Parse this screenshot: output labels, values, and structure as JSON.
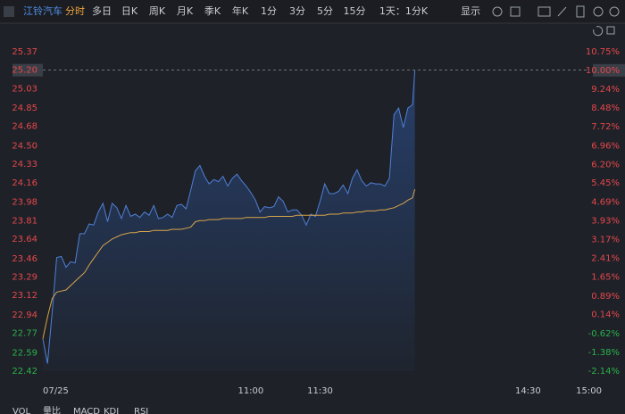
{
  "toolbar": {
    "stock": "江铃汽车",
    "tabs": [
      "分时",
      "多日",
      "日K",
      "周K",
      "月K",
      "季K",
      "年K",
      "1分",
      "3分",
      "5分",
      "15分",
      "1天：1分K"
    ],
    "display": "显示"
  },
  "indicators": [
    "VOL",
    "量比",
    "MACD",
    "KDJ",
    "RSI"
  ],
  "chart_data": {
    "type": "line",
    "x": [
      0,
      2,
      4,
      6,
      8,
      10,
      12,
      14,
      16,
      18,
      20,
      22,
      24,
      26,
      28,
      30,
      32,
      34,
      36,
      38,
      40,
      42,
      44,
      46,
      48,
      50,
      52,
      54,
      56,
      58,
      60,
      62,
      64,
      66,
      68,
      70,
      72,
      74,
      76,
      78,
      80,
      82,
      84,
      86,
      88,
      90,
      92,
      94,
      96,
      98,
      100,
      102,
      104,
      106,
      108,
      110,
      112,
      114,
      116,
      118,
      120,
      122,
      124,
      126,
      128,
      130,
      132,
      134,
      136,
      138,
      140,
      142,
      144,
      146,
      148,
      150,
      152,
      154,
      156,
      158,
      160,
      161
    ],
    "series": [
      {
        "name": "price",
        "color": "#4f80d8",
        "values": [
          22.72,
          22.49,
          22.96,
          23.47,
          23.48,
          23.38,
          23.43,
          23.42,
          23.69,
          23.69,
          23.78,
          23.77,
          23.89,
          23.97,
          23.8,
          23.97,
          23.93,
          23.83,
          23.95,
          23.85,
          23.87,
          23.84,
          23.89,
          23.86,
          23.95,
          23.83,
          23.84,
          23.87,
          23.84,
          23.95,
          23.96,
          23.92,
          24.09,
          24.27,
          24.32,
          24.22,
          24.15,
          24.19,
          24.17,
          24.22,
          24.13,
          24.2,
          24.24,
          24.18,
          24.13,
          24.07,
          24.0,
          23.89,
          23.94,
          23.93,
          23.94,
          24.03,
          23.99,
          23.89,
          23.91,
          23.91,
          23.86,
          23.77,
          23.87,
          23.85,
          23.99,
          24.15,
          24.06,
          24.06,
          24.08,
          24.14,
          24.06,
          24.2,
          24.28,
          24.18,
          24.13,
          24.16,
          24.15,
          24.15,
          24.13,
          24.2,
          24.79,
          24.85,
          24.67,
          24.85,
          24.88,
          25.2
        ]
      },
      {
        "name": "average",
        "color": "#d9a54a",
        "values": [
          22.72,
          22.92,
          23.09,
          23.15,
          23.16,
          23.17,
          23.21,
          23.25,
          23.29,
          23.33,
          23.4,
          23.46,
          23.52,
          23.58,
          23.61,
          23.64,
          23.66,
          23.68,
          23.69,
          23.7,
          23.7,
          23.71,
          23.71,
          23.71,
          23.72,
          23.72,
          23.72,
          23.72,
          23.73,
          23.73,
          23.73,
          23.74,
          23.75,
          23.8,
          23.81,
          23.81,
          23.82,
          23.82,
          23.82,
          23.83,
          23.83,
          23.83,
          23.83,
          23.83,
          23.84,
          23.84,
          23.84,
          23.84,
          23.84,
          23.85,
          23.85,
          23.85,
          23.85,
          23.85,
          23.85,
          23.86,
          23.86,
          23.86,
          23.86,
          23.86,
          23.86,
          23.86,
          23.87,
          23.87,
          23.87,
          23.88,
          23.88,
          23.88,
          23.89,
          23.89,
          23.9,
          23.9,
          23.9,
          23.91,
          23.91,
          23.92,
          23.93,
          23.95,
          23.97,
          24.0,
          24.02,
          24.1
        ]
      }
    ],
    "xlim": [
      0,
      240
    ],
    "xticks": [
      {
        "value": 0,
        "label": "07/25"
      },
      {
        "value": 90,
        "label": "11:00"
      },
      {
        "value": 120,
        "label": "11:30"
      },
      {
        "value": 210,
        "label": "14:30"
      },
      {
        "value": 240,
        "label": "15:00"
      }
    ],
    "ylim": [
      22.42,
      25.37
    ],
    "yticks": [
      {
        "value": 25.37,
        "label": "25.37"
      },
      {
        "value": 25.2,
        "label": "25.20"
      },
      {
        "value": 25.03,
        "label": "25.03"
      },
      {
        "value": 24.85,
        "label": "24.85"
      },
      {
        "value": 24.68,
        "label": "24.68"
      },
      {
        "value": 24.5,
        "label": "24.50"
      },
      {
        "value": 24.33,
        "label": "24.33"
      },
      {
        "value": 24.16,
        "label": "24.16"
      },
      {
        "value": 23.98,
        "label": "23.98"
      },
      {
        "value": 23.81,
        "label": "23.81"
      },
      {
        "value": 23.64,
        "label": "23.64"
      },
      {
        "value": 23.46,
        "label": "23.46"
      },
      {
        "value": 23.29,
        "label": "23.29"
      },
      {
        "value": 23.12,
        "label": "23.12"
      },
      {
        "value": 22.94,
        "label": "22.94"
      },
      {
        "value": 22.77,
        "label": "22.77"
      },
      {
        "value": 22.59,
        "label": "22.59"
      },
      {
        "value": 22.42,
        "label": "22.42"
      }
    ],
    "y2lim": [
      -2.14,
      10.75
    ],
    "y2ticks": [
      {
        "value": 10.75,
        "label": "10.75%"
      },
      {
        "value": 10.0,
        "label": "10.00%"
      },
      {
        "value": 9.24,
        "label": "9.24%"
      },
      {
        "value": 8.48,
        "label": "8.48%"
      },
      {
        "value": 7.72,
        "label": "7.72%"
      },
      {
        "value": 6.96,
        "label": "6.96%"
      },
      {
        "value": 6.2,
        "label": "6.20%"
      },
      {
        "value": 5.45,
        "label": "5.45%"
      },
      {
        "value": 4.69,
        "label": "4.69%"
      },
      {
        "value": 3.93,
        "label": "3.93%"
      },
      {
        "value": 3.17,
        "label": "3.17%"
      },
      {
        "value": 2.41,
        "label": "2.41%"
      },
      {
        "value": 1.65,
        "label": "1.65%"
      },
      {
        "value": 0.89,
        "label": "0.89%"
      },
      {
        "value": 0.14,
        "label": "0.14%"
      },
      {
        "value": -0.62,
        "label": "-0.62%"
      },
      {
        "value": -1.38,
        "label": "-1.38%"
      },
      {
        "value": -2.14,
        "label": "-2.14%"
      }
    ],
    "limit_price": 25.2,
    "up_color": "#e5484d",
    "down_color": "#2bb24c",
    "grid": false
  }
}
